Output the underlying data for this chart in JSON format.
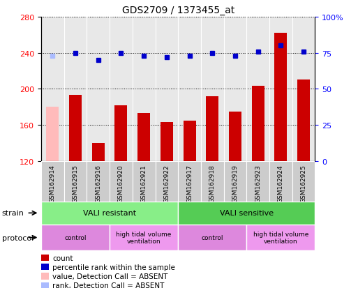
{
  "title": "GDS2709 / 1373455_at",
  "samples": [
    "GSM162914",
    "GSM162915",
    "GSM162916",
    "GSM162920",
    "GSM162921",
    "GSM162922",
    "GSM162917",
    "GSM162918",
    "GSM162919",
    "GSM162923",
    "GSM162924",
    "GSM162925"
  ],
  "bar_values": [
    180,
    193,
    140,
    182,
    173,
    163,
    165,
    192,
    175,
    203,
    262,
    210
  ],
  "bar_absent": [
    true,
    false,
    false,
    false,
    false,
    false,
    false,
    false,
    false,
    false,
    false,
    false
  ],
  "rank_values": [
    73,
    75,
    70,
    75,
    73,
    72,
    73,
    75,
    73,
    76,
    80,
    76
  ],
  "rank_absent": [
    true,
    false,
    false,
    false,
    false,
    false,
    false,
    false,
    false,
    false,
    false,
    false
  ],
  "ylim_left": [
    120,
    280
  ],
  "ylim_right": [
    0,
    100
  ],
  "yticks_left": [
    120,
    160,
    200,
    240,
    280
  ],
  "yticks_right": [
    0,
    25,
    50,
    75,
    100
  ],
  "ytick_labels_right": [
    "0",
    "25",
    "50",
    "75",
    "100%"
  ],
  "bar_color_present": "#cc0000",
  "bar_color_absent": "#ffbbbb",
  "rank_color_present": "#0000cc",
  "rank_color_absent": "#aabbff",
  "strain_groups": [
    {
      "label": "VALI resistant",
      "start": 0,
      "end": 6,
      "color": "#88ee88"
    },
    {
      "label": "VALI sensitive",
      "start": 6,
      "end": 12,
      "color": "#55cc55"
    }
  ],
  "protocol_groups": [
    {
      "label": "control",
      "start": 0,
      "end": 3,
      "color": "#dd88dd"
    },
    {
      "label": "high tidal volume\nventilation",
      "start": 3,
      "end": 6,
      "color": "#ee99ee"
    },
    {
      "label": "control",
      "start": 6,
      "end": 9,
      "color": "#dd88dd"
    },
    {
      "label": "high tidal volume\nventilation",
      "start": 9,
      "end": 12,
      "color": "#ee99ee"
    }
  ],
  "legend_items": [
    {
      "color": "#cc0000",
      "label": "count"
    },
    {
      "color": "#0000cc",
      "label": "percentile rank within the sample"
    },
    {
      "color": "#ffbbbb",
      "label": "value, Detection Call = ABSENT"
    },
    {
      "color": "#aabbff",
      "label": "rank, Detection Call = ABSENT"
    }
  ],
  "strain_label": "strain",
  "protocol_label": "protocol",
  "marker_size": 5,
  "bar_width": 0.55,
  "sample_box_color": "#cccccc",
  "plot_bg": "#e8e8e8",
  "fig_width": 5.13,
  "fig_height": 4.14,
  "dpi": 100
}
